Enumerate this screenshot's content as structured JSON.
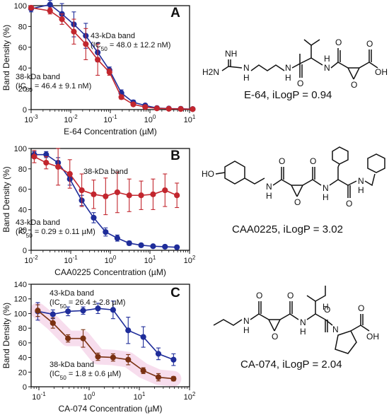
{
  "colors": {
    "blue": "#1f2d9a",
    "red": "#c2262e",
    "brown": "#7a3112",
    "pinkband": "#f4cfe6"
  },
  "chart_data": [
    {
      "panel": "A",
      "type": "line",
      "xscale": "log",
      "xlim": [
        0.001,
        10
      ],
      "ylim": [
        0,
        100
      ],
      "xticks": [
        "10-3",
        "10-2",
        "10-1",
        "100",
        "101"
      ],
      "yticks": [
        "0",
        "20",
        "40",
        "60",
        "80",
        "100"
      ],
      "xlabel": "E-64 Concentration (µM)",
      "ylabel": "Band Density (%)",
      "series": [
        {
          "name": "43-kDa band",
          "color": "blue",
          "x": [
            0.001,
            0.003,
            0.006,
            0.012,
            0.024,
            0.048,
            0.095,
            0.19,
            0.38,
            0.76,
            1.5,
            3,
            6,
            12
          ],
          "y": [
            97,
            101,
            92,
            82,
            71,
            55,
            38,
            16,
            7,
            4,
            1.5,
            1,
            0.8,
            0.5
          ],
          "err": [
            3,
            4,
            10,
            12,
            12,
            9,
            3,
            3,
            2,
            1.5,
            1,
            1,
            0.8,
            0.5
          ]
        },
        {
          "name": "38-kDa band",
          "color": "red",
          "x": [
            0.001,
            0.003,
            0.006,
            0.012,
            0.024,
            0.048,
            0.095,
            0.19,
            0.38,
            0.76,
            1.5,
            3,
            6,
            12
          ],
          "y": [
            98,
            95,
            87,
            75,
            63,
            48,
            36,
            12,
            5,
            2.5,
            1.2,
            0.8,
            0.6,
            0.4
          ],
          "err": [
            2,
            3,
            5,
            12,
            15,
            15,
            3,
            2,
            1.5,
            1,
            0.8,
            0.6,
            0.5,
            0.4
          ]
        }
      ],
      "annotations": {
        "top_label": "43-kDa band",
        "top_ic": "(IC50 = 48.0 ± 12.2 nM)",
        "bottom_label": "38-kDa band",
        "bottom_ic": "(IC50 = 46.4 ± 9.1 nM)"
      },
      "compound_caption": "E-64, iLogP = 0.94"
    },
    {
      "panel": "B",
      "type": "line",
      "xscale": "log",
      "xlim": [
        0.01,
        100
      ],
      "ylim": [
        0,
        100
      ],
      "xticks": [
        "10-2",
        "10-1",
        "100",
        "101",
        "102"
      ],
      "yticks": [
        "0",
        "20",
        "40",
        "60",
        "80",
        "100"
      ],
      "xlabel": "CAA0225 Concentration (µM)",
      "ylabel": "Band Density (%)",
      "series": [
        {
          "name": "43-kDa band",
          "color": "blue",
          "x": [
            0.012,
            0.024,
            0.048,
            0.095,
            0.19,
            0.38,
            0.76,
            1.5,
            3,
            6,
            12,
            24,
            48
          ],
          "y": [
            94,
            94,
            86,
            70,
            49,
            32,
            18,
            12,
            7,
            5,
            4,
            3.5,
            3
          ],
          "err": [
            3,
            3,
            5,
            6,
            5,
            5,
            4,
            3,
            2,
            1.5,
            1,
            1,
            1
          ]
        },
        {
          "name": "38-kDa band",
          "color": "red",
          "x": [
            0.012,
            0.024,
            0.048,
            0.095,
            0.19,
            0.38,
            0.76,
            1.5,
            3,
            6,
            12,
            24,
            48
          ],
          "y": [
            92,
            86,
            82,
            75,
            59,
            55,
            53,
            57,
            54,
            54,
            55,
            59,
            54
          ],
          "err": [
            6,
            6,
            18,
            14,
            16,
            14,
            18,
            20,
            16,
            14,
            15,
            16,
            12
          ]
        }
      ],
      "annotations": {
        "top_label": "38-kDa band",
        "bottom_label": "43-kDa band",
        "bottom_ic": "(IC50 = 0.29 ± 0.11 µM)"
      },
      "compound_caption": "CAA0225, iLogP = 3.02"
    },
    {
      "panel": "C",
      "type": "line",
      "xscale": "log",
      "xlim": [
        0.07,
        100
      ],
      "ylim": [
        0,
        140
      ],
      "xticks": [
        "10-1",
        "100",
        "101",
        "102"
      ],
      "yticks": [
        "0",
        "20",
        "40",
        "60",
        "80",
        "100",
        "120",
        "140"
      ],
      "xlabel": "CA-074 Concentration (µM)",
      "ylabel": "Band Density (%)",
      "series": [
        {
          "name": "43-kDa band",
          "color": "blue",
          "x": [
            0.095,
            0.19,
            0.38,
            0.76,
            1.5,
            3,
            6,
            12,
            24,
            48
          ],
          "y": [
            103,
            99,
            103,
            104,
            107,
            105,
            77,
            68,
            45,
            37
          ],
          "err": [
            12,
            6,
            6,
            5,
            7,
            12,
            18,
            14,
            8,
            8
          ]
        },
        {
          "name": "38-kDa band",
          "color": "brown",
          "x": [
            0.095,
            0.19,
            0.38,
            0.76,
            1.5,
            3,
            6,
            12,
            24,
            48
          ],
          "y": [
            104,
            87,
            66,
            66,
            41,
            40,
            37,
            22,
            13,
            11
          ],
          "err": [
            8,
            7,
            5,
            12,
            5,
            5,
            7,
            4,
            5,
            3
          ]
        }
      ],
      "annotations": {
        "top_label": "43-kDa band",
        "top_ic": "(IC50 = 26.4 ± 2.8 µM)",
        "bottom_label": "38-kDa band",
        "bottom_ic": "(IC50 = 1.8 ± 0.6 µM)"
      },
      "compound_caption": "CA-074, iLogP = 2.04"
    }
  ],
  "structure_labels": {
    "e64": {
      "nh": "NH",
      "h2n": "H2N",
      "n": "N",
      "h": "H",
      "o": "O",
      "oh": "OH"
    },
    "caa": {
      "ho": "HO",
      "n": "N",
      "h": "H",
      "o": "O"
    },
    "ca074": {
      "n": "N",
      "h": "H",
      "o": "O",
      "oh": "OH"
    }
  }
}
